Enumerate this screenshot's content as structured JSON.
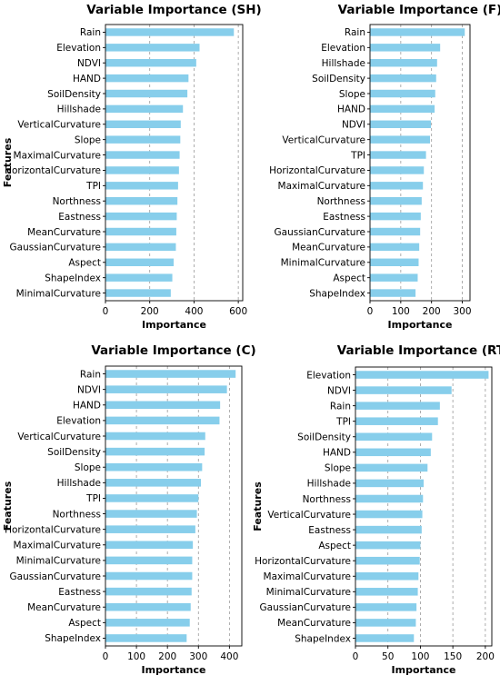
{
  "chart_data": [
    {
      "type": "bar",
      "orientation": "horizontal",
      "title": "Variable Importance (SH)",
      "xlabel": "Importance",
      "ylabel": "Features",
      "xlim": [
        0,
        620
      ],
      "xticks": [
        0,
        200,
        400,
        600
      ],
      "grid": "x-dashed",
      "categories": [
        "Rain",
        "Elevation",
        "NDVI",
        "HAND",
        "SoilDensity",
        "Hillshade",
        "VerticalCurvature",
        "Slope",
        "MaximalCurvature",
        "HorizontalCurvature",
        "TPI",
        "Northness",
        "Eastness",
        "MeanCurvature",
        "GaussianCurvature",
        "Aspect",
        "ShapeIndex",
        "MinimalCurvature"
      ],
      "values": [
        580,
        425,
        410,
        375,
        370,
        350,
        340,
        338,
        335,
        332,
        328,
        325,
        322,
        320,
        318,
        308,
        302,
        295
      ]
    },
    {
      "type": "bar",
      "orientation": "horizontal",
      "title": "Variable Importance (F)",
      "xlabel": "Importance",
      "ylabel": "",
      "xlim": [
        0,
        325
      ],
      "xticks": [
        0,
        100,
        200,
        300
      ],
      "grid": "x-dashed",
      "categories": [
        "Rain",
        "Elevation",
        "Hillshade",
        "SoilDensity",
        "Slope",
        "HAND",
        "NDVI",
        "VerticalCurvature",
        "TPI",
        "HorizontalCurvature",
        "MaximalCurvature",
        "Northness",
        "Eastness",
        "GaussianCurvature",
        "MeanCurvature",
        "MinimalCurvature",
        "Aspect",
        "ShapeIndex"
      ],
      "values": [
        308,
        228,
        218,
        215,
        212,
        210,
        198,
        195,
        182,
        175,
        172,
        168,
        165,
        163,
        160,
        158,
        155,
        148
      ]
    },
    {
      "type": "bar",
      "orientation": "horizontal",
      "title": "Variable Importance (C)",
      "xlabel": "Importance",
      "ylabel": "Features",
      "xlim": [
        0,
        440
      ],
      "xticks": [
        0,
        100,
        200,
        300,
        400
      ],
      "grid": "x-dashed",
      "categories": [
        "Rain",
        "NDVI",
        "HAND",
        "Elevation",
        "VerticalCurvature",
        "SoilDensity",
        "Slope",
        "Hillshade",
        "TPI",
        "Northness",
        "HorizontalCurvature",
        "MaximalCurvature",
        "MinimalCurvature",
        "GaussianCurvature",
        "Eastness",
        "MeanCurvature",
        "Aspect",
        "ShapeIndex"
      ],
      "values": [
        420,
        392,
        370,
        368,
        322,
        320,
        312,
        308,
        300,
        295,
        290,
        282,
        280,
        280,
        278,
        275,
        272,
        262
      ]
    },
    {
      "type": "bar",
      "orientation": "horizontal",
      "title": "Variable Importance (RT)",
      "xlabel": "Importance",
      "ylabel": "Features",
      "xlim": [
        0,
        210
      ],
      "xticks": [
        0,
        50,
        100,
        150,
        200
      ],
      "grid": "x-dashed",
      "categories": [
        "Elevation",
        "NDVI",
        "Rain",
        "TPI",
        "SoilDensity",
        "HAND",
        "Slope",
        "Hillshade",
        "Northness",
        "VerticalCurvature",
        "Eastness",
        "Aspect",
        "HorizontalCurvature",
        "MaximalCurvature",
        "MinimalCurvature",
        "GaussianCurvature",
        "MeanCurvature",
        "ShapeIndex"
      ],
      "values": [
        205,
        148,
        130,
        127,
        118,
        116,
        111,
        105,
        104,
        103,
        102,
        100,
        99,
        97,
        96,
        94,
        93,
        90
      ]
    }
  ]
}
